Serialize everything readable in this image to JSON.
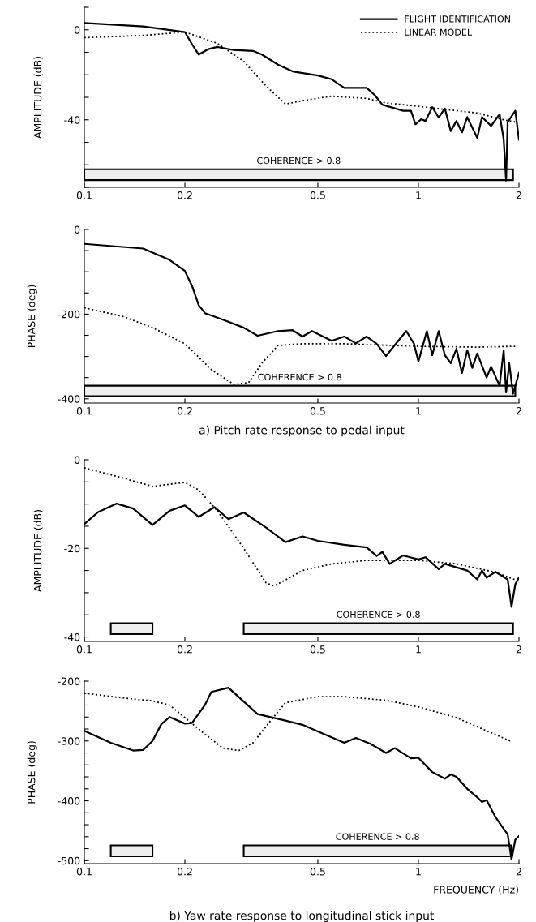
{
  "chart_data": [
    {
      "type": "line",
      "ylabel": "AMPLITUDE (dB)",
      "legend": "top right",
      "grid": false,
      "xlim": [
        0.1,
        2
      ],
      "xticks": [
        0.1,
        0.2,
        0.5,
        1,
        2
      ],
      "log": "x",
      "ylim": [
        -70,
        10
      ],
      "yticks": [
        {
          "value": 10,
          "label": null
        },
        0,
        {
          "value": -10,
          "label": null
        },
        {
          "value": -20,
          "label": null
        },
        {
          "value": -30,
          "label": null
        },
        -40,
        {
          "value": -50,
          "label": null
        },
        {
          "value": -60,
          "label": null
        },
        {
          "value": -70,
          "label": null
        }
      ],
      "series": [
        {
          "name": "FLIGHT IDENTIFICATION",
          "color": "#000000",
          "line_style": "solid",
          "x": [
            0.1,
            0.15,
            0.19,
            0.2,
            0.21,
            0.22,
            0.235,
            0.25,
            0.28,
            0.32,
            0.34,
            0.38,
            0.42,
            0.5,
            0.55,
            0.6,
            0.7,
            0.74,
            0.78,
            0.9,
            0.95,
            0.98,
            1.02,
            1.05,
            1.1,
            1.15,
            1.2,
            1.25,
            1.3,
            1.35,
            1.4,
            1.5,
            1.55,
            1.65,
            1.75,
            1.8,
            1.83,
            1.85,
            1.95,
            2.0
          ],
          "values": [
            3,
            1.5,
            -0.6,
            -1,
            -6.4,
            -11,
            -8.6,
            -7.6,
            -9,
            -9.4,
            -11,
            -15.5,
            -18.5,
            -20.3,
            -22,
            -25.8,
            -25.8,
            -29,
            -33.3,
            -36,
            -36,
            -42,
            -39.7,
            -40.5,
            -34.4,
            -39,
            -35,
            -45,
            -40.5,
            -45.6,
            -38.8,
            -48,
            -38.8,
            -42.7,
            -37.5,
            -48.8,
            -67,
            -41,
            -36,
            -48.8
          ]
        },
        {
          "name": "LINEAR MODEL",
          "color": "#000000",
          "line_style": "dotted",
          "x": [
            0.1,
            0.15,
            0.2,
            0.25,
            0.3,
            0.35,
            0.4,
            0.45,
            0.55,
            0.7,
            0.8,
            1,
            1.5,
            1.8,
            1.95
          ],
          "values": [
            -3.5,
            -2.5,
            -1,
            -6,
            -14,
            -25,
            -33,
            -31.5,
            -29.5,
            -30.5,
            -32.5,
            -34,
            -37,
            -40,
            -41
          ]
        }
      ],
      "bands": [
        {
          "axis": "x",
          "from": 0.1,
          "to": 1.92,
          "label": "COHERENCE > 0.8"
        }
      ]
    },
    {
      "type": "line",
      "ylabel": "PHASE (deg)",
      "grid": false,
      "xlim": [
        0.1,
        2
      ],
      "xticks": [
        0.1,
        0.2,
        0.5,
        1,
        2
      ],
      "log": "x",
      "ylim": [
        -410,
        0
      ],
      "yticks": [
        0,
        {
          "value": -50,
          "label": null
        },
        {
          "value": -100,
          "label": null
        },
        {
          "value": -150,
          "label": null
        },
        -200,
        {
          "value": -250,
          "label": null
        },
        {
          "value": -300,
          "label": null
        },
        {
          "value": -350,
          "label": null
        },
        -400
      ],
      "series": [
        {
          "color": "#000000",
          "line_style": "solid",
          "x": [
            0.1,
            0.15,
            0.18,
            0.2,
            0.21,
            0.22,
            0.23,
            0.26,
            0.3,
            0.33,
            0.38,
            0.42,
            0.45,
            0.48,
            0.55,
            0.6,
            0.65,
            0.7,
            0.75,
            0.8,
            0.87,
            0.92,
            0.97,
            1.0,
            1.06,
            1.1,
            1.15,
            1.2,
            1.25,
            1.3,
            1.35,
            1.4,
            1.45,
            1.5,
            1.6,
            1.65,
            1.75,
            1.8,
            1.83,
            1.87,
            1.92,
            2.0
          ],
          "values": [
            -34,
            -45,
            -72,
            -98,
            -133,
            -179,
            -198,
            -213,
            -232,
            -251,
            -240,
            -238,
            -253,
            -240,
            -263,
            -253,
            -269,
            -253,
            -270,
            -299,
            -263,
            -240,
            -270,
            -312,
            -240,
            -297,
            -240,
            -297,
            -316,
            -282,
            -339,
            -285,
            -327,
            -293,
            -350,
            -324,
            -369,
            -285,
            -385,
            -316,
            -388,
            -339
          ]
        },
        {
          "color": "#000000",
          "line_style": "dotted",
          "x": [
            0.1,
            0.13,
            0.16,
            0.2,
            0.24,
            0.28,
            0.31,
            0.34,
            0.38,
            0.45,
            0.6,
            1,
            1.5,
            1.95
          ],
          "values": [
            -185,
            -205,
            -232,
            -270,
            -331,
            -366,
            -362,
            -316,
            -274,
            -270,
            -270,
            -276,
            -278,
            -276
          ]
        }
      ],
      "bands": [
        {
          "axis": "x",
          "from": 0.1,
          "to": 1.95,
          "label": "COHERENCE > 0.8"
        }
      ],
      "annotations": [
        "a) Pitch rate response to pedal input"
      ]
    },
    {
      "type": "line",
      "ylabel": "AMPLITUDE (dB)",
      "grid": false,
      "xlim": [
        0.1,
        2
      ],
      "xticks": [
        0.1,
        0.2,
        0.5,
        1,
        2
      ],
      "log": "x",
      "ylim": [
        -41,
        0
      ],
      "yticks": [
        0,
        {
          "value": -5,
          "label": null
        },
        {
          "value": -10,
          "label": null
        },
        {
          "value": -15,
          "label": null
        },
        -20,
        {
          "value": -25,
          "label": null
        },
        {
          "value": -30,
          "label": null
        },
        {
          "value": -35,
          "label": null
        },
        -40
      ],
      "series": [
        {
          "color": "#000000",
          "line_style": "solid",
          "x": [
            0.1,
            0.11,
            0.125,
            0.14,
            0.16,
            0.18,
            0.2,
            0.22,
            0.245,
            0.27,
            0.3,
            0.35,
            0.4,
            0.45,
            0.5,
            0.6,
            0.7,
            0.75,
            0.78,
            0.82,
            0.9,
            1.0,
            1.05,
            1.15,
            1.2,
            1.4,
            1.5,
            1.55,
            1.6,
            1.7,
            1.85,
            1.9,
            1.95,
            2.0
          ],
          "values": [
            -14.5,
            -11.8,
            -9.9,
            -11,
            -14.7,
            -11.5,
            -10.3,
            -12.9,
            -10.7,
            -13.4,
            -11.9,
            -15.3,
            -18.6,
            -17.3,
            -18.3,
            -19.2,
            -19.8,
            -21.7,
            -20.8,
            -23.5,
            -21.6,
            -22.5,
            -22,
            -24.7,
            -23.5,
            -25,
            -27,
            -25,
            -26.6,
            -25.3,
            -27,
            -33.2,
            -28.1,
            -26.6
          ]
        },
        {
          "color": "#000000",
          "line_style": "dotted",
          "x": [
            0.1,
            0.13,
            0.16,
            0.2,
            0.22,
            0.25,
            0.3,
            0.35,
            0.37,
            0.45,
            0.55,
            0.7,
            1,
            1.3,
            1.7,
            2.0
          ],
          "values": [
            -1.8,
            -4.1,
            -6,
            -5.1,
            -6.8,
            -11.5,
            -20,
            -27.8,
            -28.5,
            -25,
            -23.5,
            -22.7,
            -22.7,
            -23.5,
            -25.4,
            -27.4
          ]
        }
      ],
      "bands": [
        {
          "axis": "x",
          "from": 0.12,
          "to": 0.16,
          "label": null
        },
        {
          "axis": "x",
          "from": 0.3,
          "to": 1.92,
          "label": "COHERENCE > 0.8"
        }
      ]
    },
    {
      "type": "line",
      "ylabel": "PHASE (deg)",
      "xlabel": "FREQUENCY (Hz)",
      "grid": false,
      "xlim": [
        0.1,
        2
      ],
      "xticks": [
        0.1,
        0.2,
        0.5,
        1,
        2
      ],
      "log": "x",
      "ylim": [
        -505,
        -200
      ],
      "yticks": [
        -200,
        {
          "value": -220,
          "label": null
        },
        {
          "value": -240,
          "label": null
        },
        {
          "value": -260,
          "label": null
        },
        {
          "value": -280,
          "label": null
        },
        -300,
        {
          "value": -320,
          "label": null
        },
        {
          "value": -340,
          "label": null
        },
        {
          "value": -360,
          "label": null
        },
        {
          "value": -380,
          "label": null
        },
        -400,
        {
          "value": -420,
          "label": null
        },
        {
          "value": -440,
          "label": null
        },
        {
          "value": -460,
          "label": null
        },
        {
          "value": -480,
          "label": null
        },
        -500
      ],
      "series": [
        {
          "color": "#000000",
          "line_style": "solid",
          "x": [
            0.1,
            0.12,
            0.14,
            0.15,
            0.16,
            0.17,
            0.18,
            0.2,
            0.21,
            0.23,
            0.24,
            0.27,
            0.3,
            0.33,
            0.4,
            0.45,
            0.5,
            0.6,
            0.65,
            0.72,
            0.8,
            0.85,
            0.95,
            1.0,
            1.1,
            1.2,
            1.25,
            1.3,
            1.4,
            1.5,
            1.55,
            1.6,
            1.7,
            1.8,
            1.85,
            1.9,
            1.95,
            2.0
          ],
          "values": [
            -283,
            -303,
            -316,
            -315,
            -300,
            -272,
            -260,
            -271,
            -270,
            -239,
            -218,
            -211,
            -234,
            -255,
            -266,
            -273,
            -284,
            -303,
            -295,
            -305,
            -320,
            -312,
            -329,
            -328,
            -352,
            -363,
            -356,
            -360,
            -380,
            -394,
            -402,
            -399,
            -427,
            -447,
            -456,
            -498,
            -465,
            -459
          ]
        },
        {
          "color": "#000000",
          "line_style": "dotted",
          "x": [
            0.1,
            0.13,
            0.16,
            0.18,
            0.2,
            0.23,
            0.26,
            0.29,
            0.32,
            0.36,
            0.4,
            0.5,
            0.6,
            0.8,
            1.0,
            1.3,
            1.6,
            1.9
          ],
          "values": [
            -220,
            -228,
            -233,
            -240,
            -261,
            -289,
            -312,
            -316,
            -303,
            -267,
            -236,
            -226,
            -226,
            -232,
            -243,
            -261,
            -283,
            -301
          ]
        }
      ],
      "bands": [
        {
          "axis": "x",
          "from": 0.12,
          "to": 0.16,
          "label": null
        },
        {
          "axis": "x",
          "from": 0.3,
          "to": 1.9,
          "label": "COHERENCE > 0.8"
        }
      ],
      "annotations": [
        "b) Yaw rate response to longitudinal stick input"
      ]
    }
  ]
}
